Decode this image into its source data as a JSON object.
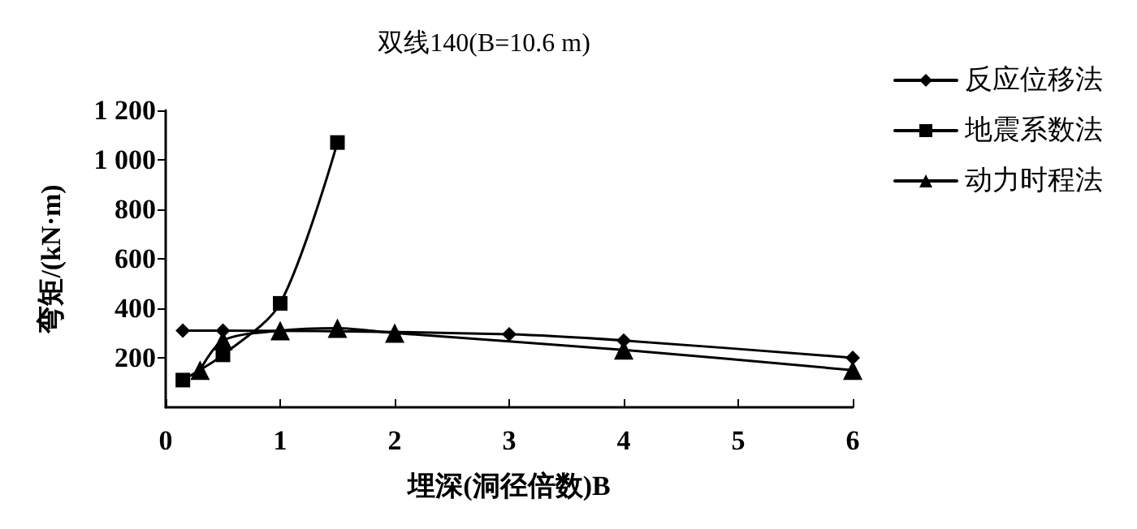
{
  "chart_data": {
    "type": "line",
    "title": "双线140(B=10.6 m)",
    "xlabel": "埋深(洞径倍数)B",
    "ylabel": "弯矩/(kN·m)",
    "xlim": [
      0,
      6
    ],
    "xticks": [
      0,
      1,
      2,
      3,
      4,
      5,
      6
    ],
    "ylim": [
      0,
      1200
    ],
    "yticks": [
      200,
      400,
      600,
      800,
      {
        "value": 1000,
        "label": "1 000"
      },
      {
        "value": 1200,
        "label": "1 200"
      }
    ],
    "grid": false,
    "legend": "right",
    "series": [
      {
        "name": "反应位移法",
        "color": "#000000",
        "marker": "diamond",
        "x": [
          0.15,
          0.5,
          1,
          1.5,
          2,
          3,
          4,
          6
        ],
        "values": [
          310,
          310,
          null,
          null,
          null,
          295,
          270,
          200
        ]
      },
      {
        "name": "地震系数法",
        "color": "#000000",
        "marker": "square",
        "x": [
          0.15,
          0.5,
          1,
          1.5
        ],
        "values": [
          110,
          212,
          420,
          1070
        ]
      },
      {
        "name": "动力时程法",
        "color": "#000000",
        "marker": "triangle",
        "x": [
          0.3,
          0.5,
          1,
          1.5,
          2,
          4,
          6
        ],
        "values": [
          150,
          270,
          310,
          320,
          300,
          232,
          150
        ]
      }
    ]
  }
}
